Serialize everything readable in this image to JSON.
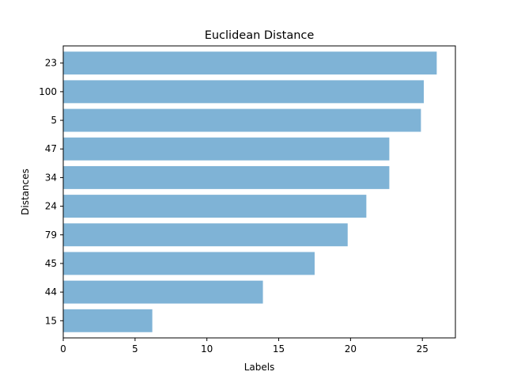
{
  "chart_data": {
    "type": "bar",
    "orientation": "horizontal",
    "title": "Euclidean Distance",
    "xlabel": "Labels",
    "ylabel": "Distances",
    "categories": [
      "23",
      "100",
      "5",
      "47",
      "34",
      "24",
      "79",
      "45",
      "44",
      "15"
    ],
    "values": [
      26.0,
      25.1,
      24.9,
      22.7,
      22.7,
      21.1,
      19.8,
      17.5,
      13.9,
      6.2
    ],
    "xlim": [
      0,
      27.3
    ],
    "xticks": [
      "0",
      "5",
      "10",
      "15",
      "20",
      "25"
    ],
    "xtick_values": [
      0,
      5,
      10,
      15,
      20,
      25
    ],
    "bar_color": "#7fb3d6",
    "grid": false,
    "legend": "none"
  }
}
